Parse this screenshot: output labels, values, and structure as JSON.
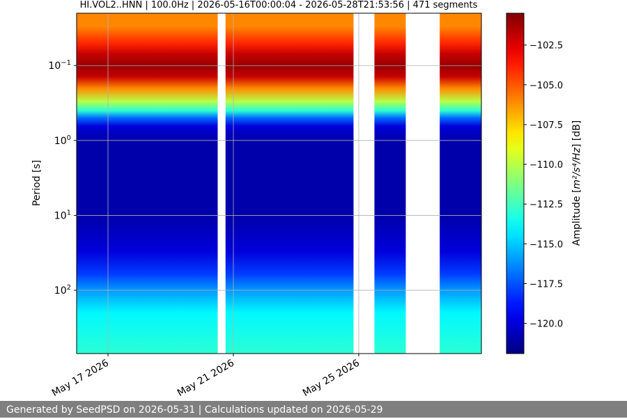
{
  "chart_data": {
    "type": "heatmap",
    "title": "HI.VOL2..HNN | 100.0Hz | 2026-05-16T00:00:04 - 2026-05-28T21:53:56 | 471 segments",
    "ylabel": "Period [s]",
    "y_scale": "log",
    "y_axis_inverted": true,
    "ylim": [
      0.02,
      700
    ],
    "y_ticks": [
      {
        "value": 0.1,
        "base": "10",
        "exp": "−1"
      },
      {
        "value": 1,
        "base": "10",
        "exp": "0"
      },
      {
        "value": 10,
        "base": "10",
        "exp": "1"
      },
      {
        "value": 100,
        "base": "10",
        "exp": "2"
      }
    ],
    "xlim": [
      "2026-05-16T00:00:04",
      "2026-05-28T21:53:56"
    ],
    "x_ticks": [
      {
        "date": "2026-05-17",
        "label": "May 17 2026"
      },
      {
        "date": "2026-05-21",
        "label": "May 21 2026"
      },
      {
        "date": "2026-05-25",
        "label": "May 25 2026"
      }
    ],
    "data_segments": [
      {
        "start": "2026-05-16T00:00:04",
        "end": "2026-05-20T12:00:00"
      },
      {
        "start": "2026-05-20T18:00:00",
        "end": "2026-05-24T20:00:00"
      },
      {
        "start": "2026-05-25T12:00:00",
        "end": "2026-05-26T12:00:00"
      },
      {
        "start": "2026-05-27T14:00:00",
        "end": "2026-05-28T21:53:56"
      }
    ],
    "amplitude_profile": [
      {
        "period": 0.02,
        "db": -106
      },
      {
        "period": 0.03,
        "db": -106
      },
      {
        "period": 0.05,
        "db": -104
      },
      {
        "period": 0.07,
        "db": -102
      },
      {
        "period": 0.1,
        "db": -101
      },
      {
        "period": 0.14,
        "db": -102
      },
      {
        "period": 0.2,
        "db": -106
      },
      {
        "period": 0.3,
        "db": -110
      },
      {
        "period": 0.4,
        "db": -113
      },
      {
        "period": 0.5,
        "db": -117
      },
      {
        "period": 0.65,
        "db": -120
      },
      {
        "period": 1,
        "db": -121
      },
      {
        "period": 10,
        "db": -121
      },
      {
        "period": 30,
        "db": -120
      },
      {
        "period": 60,
        "db": -118
      },
      {
        "period": 100,
        "db": -116
      },
      {
        "period": 200,
        "db": -114
      },
      {
        "period": 700,
        "db": -113
      }
    ],
    "colorbar": {
      "label_prefix": "Amplitude [",
      "label_math": "m²/s⁴/Hz",
      "label_suffix": "] [dB]",
      "range": [
        -121.9,
        -100.5
      ],
      "ticks": [
        -102.5,
        -105.0,
        -107.5,
        -110.0,
        -112.5,
        -115.0,
        -117.5,
        -120.0
      ],
      "tick_labels": [
        "−102.5",
        "−105.0",
        "−107.5",
        "−110.0",
        "−112.5",
        "−115.0",
        "−117.5",
        "−120.0"
      ],
      "colormap": "jet"
    },
    "grid": true
  },
  "footer": {
    "text": "Generated by SeedPSD on 2026-05-31 | Calculations updated on 2026-05-29"
  }
}
